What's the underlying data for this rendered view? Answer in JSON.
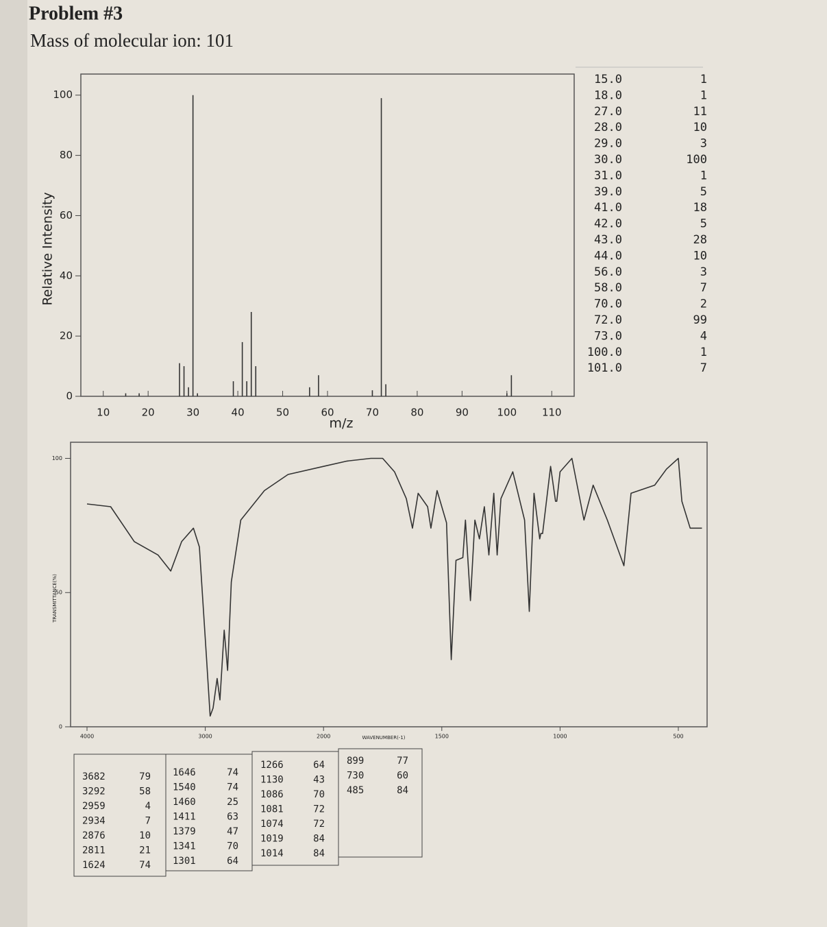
{
  "header": {
    "title": "Problem #3",
    "subtitle": "Mass of molecular ion: 101"
  },
  "chart_data": [
    {
      "type": "stick",
      "xlabel": "m/z",
      "ylabel": "Relative Intensity",
      "x": [
        15,
        18,
        27,
        28,
        29,
        30,
        31,
        39,
        41,
        42,
        43,
        44,
        56,
        58,
        70,
        72,
        73,
        100,
        101
      ],
      "values": [
        1,
        1,
        11,
        10,
        3,
        100,
        1,
        5,
        18,
        5,
        28,
        10,
        3,
        7,
        2,
        99,
        4,
        1,
        7
      ],
      "color": "#333333",
      "xlim": [
        5,
        115
      ],
      "ylim": [
        0,
        107
      ],
      "xticks": [
        10,
        20,
        30,
        40,
        50,
        60,
        70,
        80,
        90,
        100,
        110
      ],
      "yticks": [
        0,
        20,
        40,
        60,
        80,
        100
      ]
    },
    {
      "type": "line",
      "xlabel": "WAVENUMBER(-1)",
      "ylabel": "TRANSMITTANCE(%)",
      "x": [
        4000,
        3800,
        3600,
        3400,
        3292,
        3200,
        3100,
        3050,
        2990,
        2959,
        2934,
        2900,
        2876,
        2840,
        2811,
        2780,
        2700,
        2500,
        2300,
        2000,
        1900,
        1800,
        1750,
        1700,
        1650,
        1624,
        1600,
        1560,
        1546,
        1520,
        1480,
        1460,
        1440,
        1411,
        1400,
        1379,
        1360,
        1341,
        1320,
        1301,
        1280,
        1266,
        1250,
        1200,
        1150,
        1130,
        1110,
        1086,
        1081,
        1074,
        1040,
        1019,
        1014,
        1000,
        950,
        899,
        860,
        800,
        730,
        700,
        600,
        550,
        500,
        485,
        450,
        400
      ],
      "values": [
        83,
        82,
        69,
        64,
        58,
        69,
        74,
        67,
        26,
        4,
        7,
        18,
        10,
        36,
        21,
        54,
        77,
        88,
        94,
        97,
        99,
        100,
        100,
        95,
        85,
        74,
        87,
        82,
        74,
        88,
        76,
        25,
        62,
        63,
        77,
        47,
        77,
        70,
        82,
        64,
        87,
        64,
        85,
        95,
        77,
        43,
        87,
        70,
        72,
        72,
        97,
        84,
        84,
        95,
        100,
        77,
        90,
        77,
        60,
        87,
        90,
        96,
        100,
        84,
        74,
        74
      ],
      "color": "#333333",
      "xlim": [
        4100,
        400
      ],
      "ylim": [
        0,
        106
      ],
      "xticks": [
        4000,
        3000,
        2000,
        1500,
        1000,
        500
      ],
      "yticks": [
        0,
        50,
        100
      ]
    }
  ],
  "ms_table": {
    "rows": [
      [
        "15.0",
        1
      ],
      [
        "18.0",
        1
      ],
      [
        "27.0",
        11
      ],
      [
        "28.0",
        10
      ],
      [
        "29.0",
        3
      ],
      [
        "30.0",
        100
      ],
      [
        "31.0",
        1
      ],
      [
        "39.0",
        5
      ],
      [
        "41.0",
        18
      ],
      [
        "42.0",
        5
      ],
      [
        "43.0",
        28
      ],
      [
        "44.0",
        10
      ],
      [
        "56.0",
        3
      ],
      [
        "58.0",
        7
      ],
      [
        "70.0",
        2
      ],
      [
        "72.0",
        99
      ],
      [
        "73.0",
        4
      ],
      [
        "100.0",
        1
      ],
      [
        "101.0",
        7
      ]
    ]
  },
  "ir_table": {
    "columns": [
      [
        [
          3682,
          79
        ],
        [
          3292,
          58
        ],
        [
          2959,
          4
        ],
        [
          2934,
          7
        ],
        [
          2876,
          10
        ],
        [
          2811,
          21
        ],
        [
          1624,
          74
        ]
      ],
      [
        [
          1646,
          74
        ],
        [
          1540,
          74
        ],
        [
          1460,
          25
        ],
        [
          1411,
          63
        ],
        [
          1379,
          47
        ],
        [
          1341,
          70
        ],
        [
          1301,
          64
        ]
      ],
      [
        [
          1266,
          64
        ],
        [
          1130,
          43
        ],
        [
          1086,
          70
        ],
        [
          1081,
          72
        ],
        [
          1074,
          72
        ],
        [
          1019,
          84
        ],
        [
          1014,
          84
        ]
      ],
      [
        [
          899,
          77
        ],
        [
          730,
          60
        ],
        [
          485,
          84
        ]
      ]
    ]
  }
}
